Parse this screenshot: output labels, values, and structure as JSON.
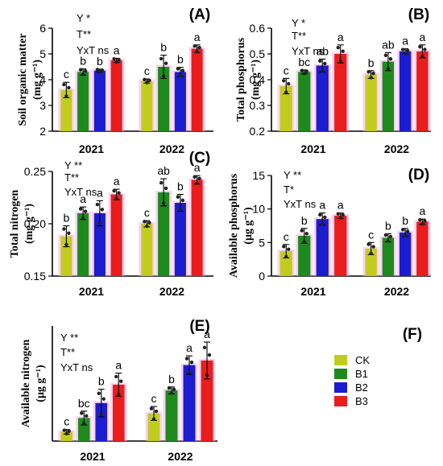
{
  "colors": {
    "CK": "#c2cc1f",
    "B1": "#1e8a1e",
    "B2": "#1c1cd0",
    "B3": "#ea1c1c",
    "glow": "#f4b2e4"
  },
  "legend": {
    "items": [
      {
        "name": "CK",
        "color": "#c2cc1f"
      },
      {
        "name": "B1",
        "color": "#1e8a1e"
      },
      {
        "name": "B2",
        "color": "#1c1cd0"
      },
      {
        "name": "B3",
        "color": "#ea1c1c"
      }
    ]
  },
  "chart_data": [
    {
      "type": "bar",
      "panel": "(A)",
      "ylabel_main": "Soil organic matter",
      "ylabel_unit": "(mg g⁻¹)",
      "categories": [
        "2021",
        "2022"
      ],
      "ylim": [
        2,
        6
      ],
      "yticks": [
        "2",
        "3",
        "4",
        "5",
        "6"
      ],
      "sig": [
        "Y *",
        "T**",
        "YxT ns"
      ],
      "series": [
        {
          "name": "CK",
          "values": [
            3.6,
            3.95
          ],
          "err": [
            0.3,
            0.08
          ],
          "letters": [
            "c",
            "c"
          ]
        },
        {
          "name": "B1",
          "values": [
            4.3,
            4.5
          ],
          "err": [
            0.12,
            0.45
          ],
          "letters": [
            "b",
            "b"
          ]
        },
        {
          "name": "B2",
          "values": [
            4.35,
            4.3
          ],
          "err": [
            0.06,
            0.18
          ],
          "letters": [
            "b",
            "b"
          ]
        },
        {
          "name": "B3",
          "values": [
            4.75,
            5.2
          ],
          "err": [
            0.08,
            0.15
          ],
          "letters": [
            "a",
            "a"
          ]
        }
      ]
    },
    {
      "type": "bar",
      "panel": "(B)",
      "ylabel_main": "Total phosphorus",
      "ylabel_unit": "(mg g⁻¹)",
      "categories": [
        "2021",
        "2022"
      ],
      "ylim": [
        0.2,
        0.6
      ],
      "yticks": [
        "0.2",
        "0.3",
        "0.4",
        "0.5",
        "0.6"
      ],
      "sig": [
        "Y *",
        "T**",
        "YxT ns"
      ],
      "series": [
        {
          "name": "CK",
          "values": [
            0.375,
            0.42
          ],
          "err": [
            0.03,
            0.015
          ],
          "letters": [
            "c",
            "b"
          ]
        },
        {
          "name": "B1",
          "values": [
            0.43,
            0.47
          ],
          "err": [
            0.008,
            0.035
          ],
          "letters": [
            "bc",
            "ab"
          ]
        },
        {
          "name": "B2",
          "values": [
            0.455,
            0.51
          ],
          "err": [
            0.025,
            0.01
          ],
          "letters": [
            "ab",
            "a"
          ]
        },
        {
          "name": "B3",
          "values": [
            0.5,
            0.51
          ],
          "err": [
            0.035,
            0.025
          ],
          "letters": [
            "a",
            "a"
          ]
        }
      ]
    },
    {
      "type": "bar",
      "panel": "(C)",
      "ylabel_main": "Total nitrogen",
      "ylabel_unit": "(mg g⁻¹)",
      "categories": [
        "2021",
        "2022"
      ],
      "ylim": [
        0.15,
        0.25
      ],
      "yticks": [
        "0.15",
        "0.20",
        "0.25"
      ],
      "sig": [
        "Y **",
        "T**",
        "YxT ns"
      ],
      "series": [
        {
          "name": "CK",
          "values": [
            0.188,
            0.2
          ],
          "err": [
            0.01,
            0.003
          ],
          "letters": [
            "b",
            "c"
          ]
        },
        {
          "name": "B1",
          "values": [
            0.21,
            0.23
          ],
          "err": [
            0.006,
            0.013
          ],
          "letters": [
            "a",
            "ab"
          ]
        },
        {
          "name": "B2",
          "values": [
            0.21,
            0.22
          ],
          "err": [
            0.012,
            0.008
          ],
          "letters": [
            "a",
            "b"
          ]
        },
        {
          "name": "B3",
          "values": [
            0.228,
            0.242
          ],
          "err": [
            0.005,
            0.004
          ],
          "letters": [
            "a",
            "a"
          ]
        }
      ]
    },
    {
      "type": "bar",
      "panel": "(D)",
      "ylabel_main": "Available phosphorus",
      "ylabel_unit": "(μg g⁻¹)",
      "categories": [
        "2021",
        "2022"
      ],
      "ylim": [
        0,
        15
      ],
      "yticks": [
        "0",
        "5",
        "10",
        "15"
      ],
      "sig": [
        "Y **",
        "T*",
        "YxT ns"
      ],
      "series": [
        {
          "name": "CK",
          "values": [
            3.7,
            4.1
          ],
          "err": [
            1.0,
            0.9
          ],
          "letters": [
            "c",
            "c"
          ]
        },
        {
          "name": "B1",
          "values": [
            6.0,
            5.7
          ],
          "err": [
            1.1,
            0.6
          ],
          "letters": [
            "b",
            "b"
          ]
        },
        {
          "name": "B2",
          "values": [
            8.5,
            6.5
          ],
          "err": [
            0.9,
            0.6
          ],
          "letters": [
            "a",
            "b"
          ]
        },
        {
          "name": "B3",
          "values": [
            9.0,
            8.1
          ],
          "err": [
            0.4,
            0.4
          ],
          "letters": [
            "a",
            "a"
          ]
        }
      ]
    },
    {
      "type": "bar",
      "panel": "(E)",
      "ylabel_main": "Available nitrogen",
      "ylabel_unit": "(μg g⁻¹)",
      "categories": [
        "2021",
        "2022"
      ],
      "ylim": [
        1.4,
        6.4
      ],
      "yticks": [],
      "sig": [
        "Y **",
        "T**",
        "YxT ns"
      ],
      "series": [
        {
          "name": "CK",
          "values": [
            1.8,
            2.6
          ],
          "err": [
            0.1,
            0.3
          ],
          "letters": [
            "c",
            "c"
          ]
        },
        {
          "name": "B1",
          "values": [
            2.4,
            3.6
          ],
          "err": [
            0.3,
            0.15
          ],
          "letters": [
            "bc",
            "b"
          ]
        },
        {
          "name": "B2",
          "values": [
            3.05,
            4.7
          ],
          "err": [
            0.6,
            0.4
          ],
          "letters": [
            "b",
            "a"
          ]
        },
        {
          "name": "B3",
          "values": [
            3.85,
            4.9
          ],
          "err": [
            0.5,
            0.8
          ],
          "letters": [
            "a",
            "a"
          ]
        }
      ]
    }
  ],
  "panel_f": "(F)"
}
